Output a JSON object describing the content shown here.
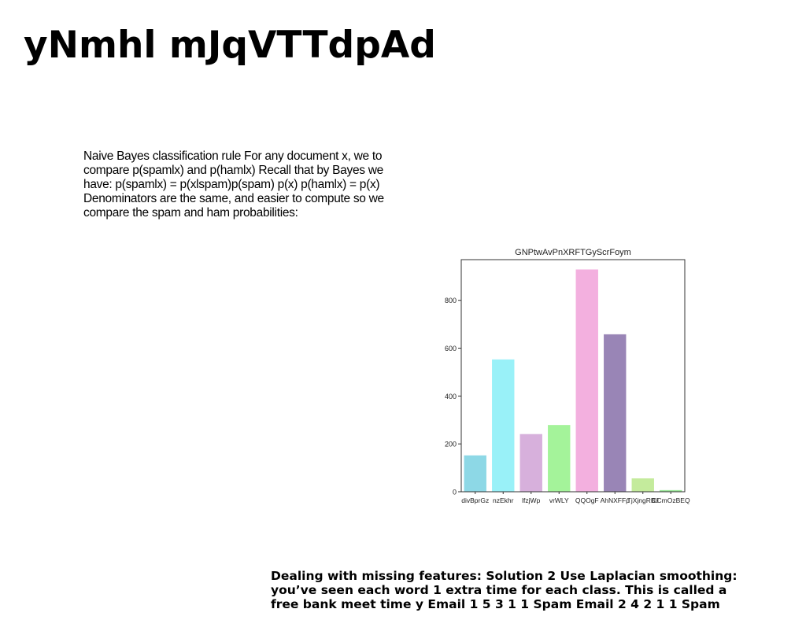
{
  "slide": {
    "title": "yNmhl mJqVTTdpAd",
    "body_text": "Naive Bayes classification rule For any document x, we to compare p(spamlx) and p(hamlx) Recall that by Bayes we have: p(spamlx) = p(xlspam)p(spam) p(x) p(hamlx) = p(x) Denominators are the same, and easier to compute so we compare the spam and ham probabilities:",
    "footer_text": "Dealing with missing features: Solution 2 Use Laplacian smoothing: you’ve seen each word 1 extra time for each class. This is called a free bank meet time y Email 1 5 3 1 1 Spam Email 2 4 2 1 1 Spam"
  },
  "chart_data": {
    "type": "bar",
    "title": "GNPtwAvPnXRFTGyScrFoym",
    "categories": [
      "divBprGz",
      "nzEkhr",
      "lfzjWp",
      "vrWLY",
      "QQOgF",
      "AhNXFFp",
      "TjXjngRBJ",
      "OCmOzBEQ"
    ],
    "values": [
      152,
      553,
      241,
      279,
      929,
      658,
      56,
      7
    ],
    "colors": [
      "#8dd8e6",
      "#99f1f8",
      "#d7b0dc",
      "#a4f39a",
      "#f3b0df",
      "#9985b6",
      "#c4eb9c",
      "#9be89a"
    ],
    "ylim": [
      0,
      970
    ],
    "yticks": [
      0,
      200,
      400,
      600,
      800
    ],
    "xlabel": "",
    "ylabel": ""
  }
}
